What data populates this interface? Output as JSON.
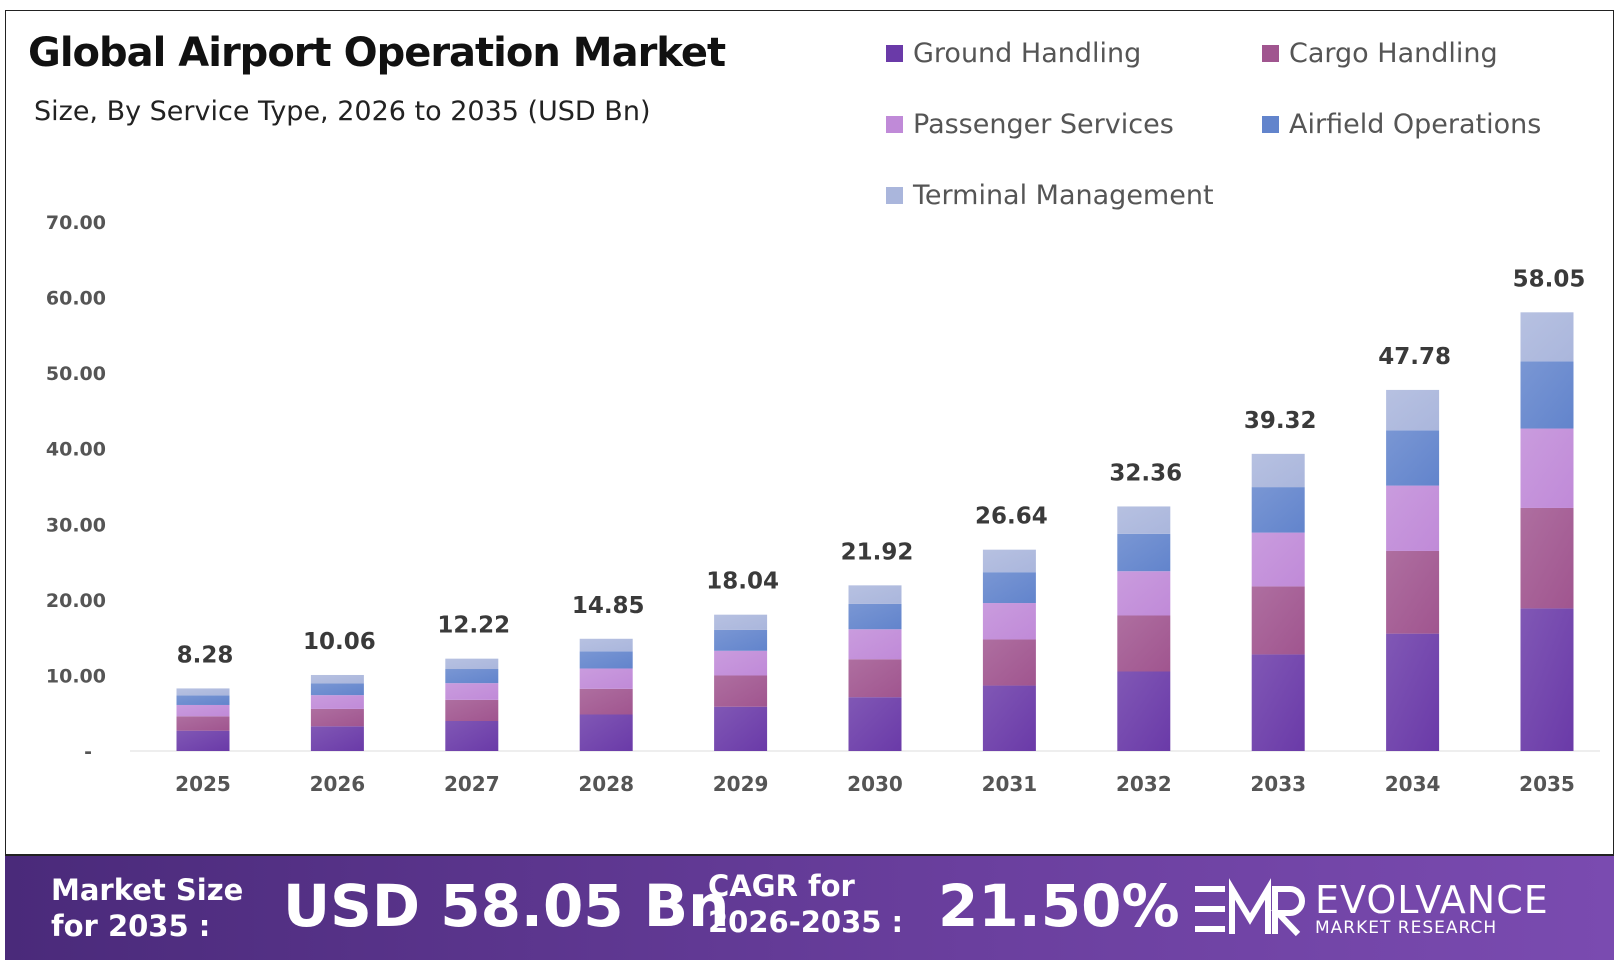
{
  "header": {
    "title": "Global Airport Operation Market",
    "subtitle": "Size, By Service Type, 2026 to 2035 (USD Bn)"
  },
  "legend": [
    {
      "label": "Ground Handling",
      "color": "#6a3aa8"
    },
    {
      "label": "Cargo Handling",
      "color": "#a0558f"
    },
    {
      "label": "Passenger Services",
      "color": "#c08ad8"
    },
    {
      "label": "Airfield Operations",
      "color": "#6284cc"
    },
    {
      "label": "Terminal Management",
      "color": "#aab6dc"
    }
  ],
  "chart_data": {
    "type": "bar",
    "stacked": true,
    "title": "Global Airport Operation Market",
    "subtitle": "Size, By Service Type, 2026 to 2035 (USD Bn)",
    "categories": [
      "2025",
      "2026",
      "2027",
      "2028",
      "2029",
      "2030",
      "2031",
      "2032",
      "2033",
      "2034",
      "2035"
    ],
    "totals": [
      8.28,
      10.06,
      12.22,
      14.85,
      18.04,
      21.92,
      26.64,
      32.36,
      39.32,
      47.78,
      58.05
    ],
    "total_labels": [
      "8.28",
      "10.06",
      "12.22",
      "14.85",
      "18.04",
      "21.92",
      "26.64",
      "32.36",
      "39.32",
      "47.78",
      "58.05"
    ],
    "series": [
      {
        "name": "Ground Handling",
        "values": [
          2.69,
          3.27,
          3.97,
          4.83,
          5.86,
          7.12,
          8.66,
          10.52,
          12.78,
          15.53,
          18.87
        ]
      },
      {
        "name": "Cargo Handling",
        "values": [
          1.9,
          2.3,
          2.8,
          3.4,
          4.13,
          5.02,
          6.1,
          7.41,
          9.0,
          10.94,
          13.29
        ]
      },
      {
        "name": "Passenger Services",
        "values": [
          1.5,
          1.82,
          2.21,
          2.69,
          3.27,
          3.97,
          4.82,
          5.86,
          7.12,
          8.65,
          10.51
        ]
      },
      {
        "name": "Airfield Operations",
        "values": [
          1.27,
          1.54,
          1.87,
          2.27,
          2.76,
          3.35,
          4.08,
          4.95,
          6.02,
          7.31,
          8.88
        ]
      },
      {
        "name": "Terminal Management",
        "values": [
          0.92,
          1.13,
          1.37,
          1.66,
          2.02,
          2.46,
          2.98,
          3.62,
          4.4,
          5.35,
          6.5
        ]
      }
    ],
    "yticks": [
      "-",
      "10.00",
      "20.00",
      "30.00",
      "40.00",
      "50.00",
      "60.00",
      "70.00"
    ],
    "ylim": [
      0,
      70
    ],
    "grid": false,
    "legend_position": "top-right"
  },
  "banner": {
    "market_label_1": "Market Size",
    "market_label_2": "for 2035 :",
    "market_value": "USD 58.05 Bn",
    "cagr_label_1": "CAGR for",
    "cagr_label_2": "2026-2035 :",
    "cagr_value": "21.50%",
    "logo_name": "EVOLVANCE",
    "logo_sub": "MARKET RESEARCH"
  }
}
